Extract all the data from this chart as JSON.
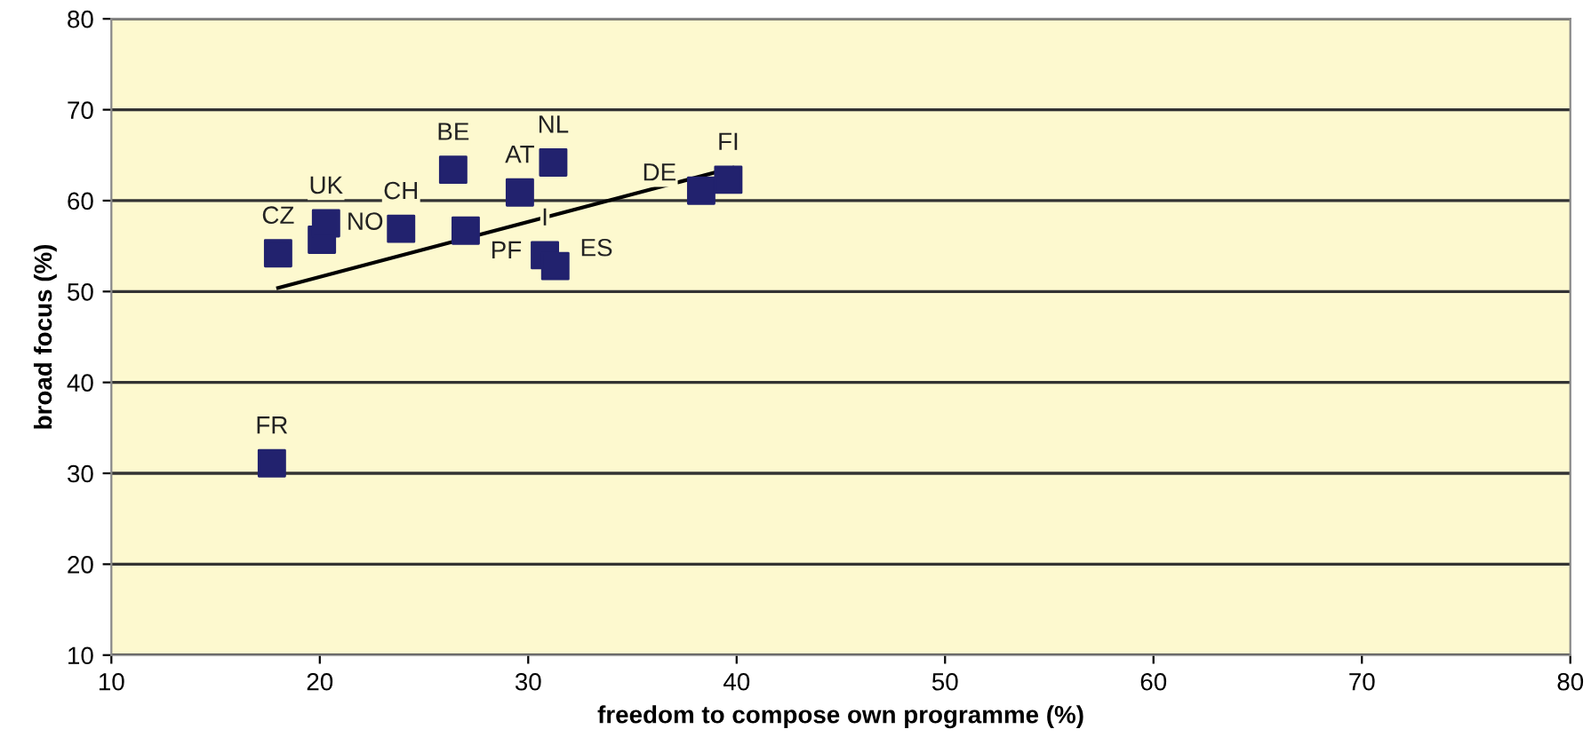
{
  "chart_data": {
    "type": "scatter",
    "xlabel": "freedom to compose own programme (%)",
    "ylabel": "broad focus (%)",
    "xlim": [
      10,
      80
    ],
    "xticks": [
      10,
      20,
      30,
      40,
      50,
      60,
      70,
      80
    ],
    "ylim": [
      10,
      80
    ],
    "yticks": [
      10,
      20,
      30,
      40,
      50,
      60,
      70,
      80
    ],
    "grid": "y",
    "legend": false,
    "series": [
      {
        "color": "#22226e",
        "marker": "square",
        "x": [
          18.0,
          20.1,
          20.3,
          23.9,
          26.4,
          27.0,
          29.6,
          31.2,
          30.8,
          31.3,
          38.3,
          39.6,
          17.7
        ],
        "values": [
          54.2,
          55.7,
          57.5,
          56.9,
          63.4,
          56.7,
          60.9,
          64.2,
          54.0,
          52.8,
          61.1,
          62.3,
          31.1
        ]
      },
      {
        "type": "line",
        "color": "#000000",
        "x": [
          18.0,
          39.8
        ],
        "values": [
          50.4,
          63.6
        ]
      }
    ],
    "annotations": [
      {
        "text": "CZ",
        "x": 18.0,
        "y": 54.2
      },
      {
        "text": "NO",
        "x": 20.1,
        "y": 55.7
      },
      {
        "text": "UK",
        "x": 20.3,
        "y": 57.5
      },
      {
        "text": "CH",
        "x": 23.9,
        "y": 56.9
      },
      {
        "text": "BE",
        "x": 26.4,
        "y": 63.4
      },
      {
        "text": "PF",
        "x": 27.0,
        "y": 56.7
      },
      {
        "text": "AT",
        "x": 29.6,
        "y": 60.9
      },
      {
        "text": "NL",
        "x": 31.2,
        "y": 64.2
      },
      {
        "text": "I",
        "x": 30.8,
        "y": 54.0
      },
      {
        "text": "ES",
        "x": 31.3,
        "y": 52.8
      },
      {
        "text": "DE",
        "x": 38.3,
        "y": 61.1
      },
      {
        "text": "FI",
        "x": 39.6,
        "y": 62.3
      },
      {
        "text": "FR",
        "x": 17.7,
        "y": 31.1
      }
    ]
  }
}
